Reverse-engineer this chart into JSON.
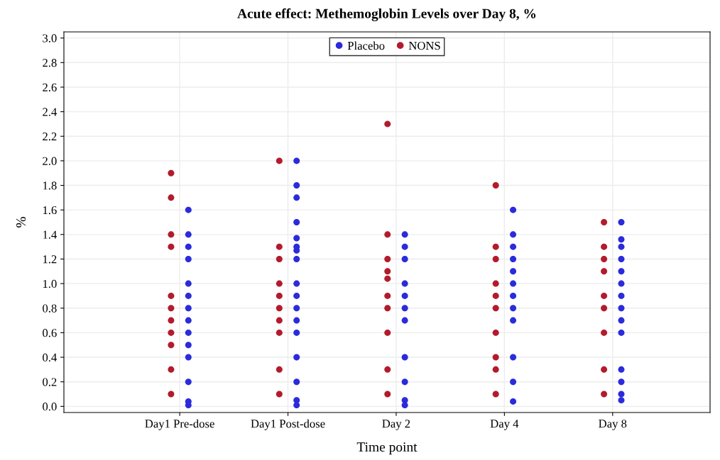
{
  "chart_data": {
    "type": "scatter",
    "title": "Acute effect: Methemoglobin Levels over Day 8, %",
    "xlabel": "Time point",
    "ylabel": "%",
    "categories": [
      "Day1 Pre-dose",
      "Day1 Post-dose",
      "Day 2",
      "Day 4",
      "Day 8"
    ],
    "series": [
      {
        "name": "Placebo",
        "color": "#2b2bdc",
        "x": [
          "Day1 Pre-dose",
          "Day1 Pre-dose",
          "Day1 Pre-dose",
          "Day1 Pre-dose",
          "Day1 Pre-dose",
          "Day1 Pre-dose",
          "Day1 Pre-dose",
          "Day1 Pre-dose",
          "Day1 Pre-dose",
          "Day1 Pre-dose",
          "Day1 Pre-dose",
          "Day1 Pre-dose",
          "Day1 Pre-dose",
          "Day1 Pre-dose",
          "Day1 Post-dose",
          "Day1 Post-dose",
          "Day1 Post-dose",
          "Day1 Post-dose",
          "Day1 Post-dose",
          "Day1 Post-dose",
          "Day1 Post-dose",
          "Day1 Post-dose",
          "Day1 Post-dose",
          "Day1 Post-dose",
          "Day1 Post-dose",
          "Day1 Post-dose",
          "Day1 Post-dose",
          "Day1 Post-dose",
          "Day1 Post-dose",
          "Day1 Post-dose",
          "Day1 Post-dose",
          "Day 2",
          "Day 2",
          "Day 2",
          "Day 2",
          "Day 2",
          "Day 2",
          "Day 2",
          "Day 2",
          "Day 2",
          "Day 2",
          "Day 2",
          "Day 4",
          "Day 4",
          "Day 4",
          "Day 4",
          "Day 4",
          "Day 4",
          "Day 4",
          "Day 4",
          "Day 4",
          "Day 4",
          "Day 4",
          "Day 4",
          "Day 8",
          "Day 8",
          "Day 8",
          "Day 8",
          "Day 8",
          "Day 8",
          "Day 8",
          "Day 8",
          "Day 8",
          "Day 8",
          "Day 8",
          "Day 8",
          "Day 8",
          "Day 8"
        ],
        "values": [
          1.6,
          1.4,
          1.3,
          1.2,
          1.0,
          0.9,
          0.8,
          0.7,
          0.6,
          0.5,
          0.4,
          0.2,
          0.04,
          0.01,
          2.0,
          1.8,
          1.7,
          1.5,
          1.37,
          1.3,
          1.27,
          1.2,
          1.0,
          0.9,
          0.8,
          0.7,
          0.6,
          0.4,
          0.2,
          0.05,
          0.01,
          1.4,
          1.3,
          1.2,
          1.0,
          0.9,
          0.8,
          0.7,
          0.4,
          0.2,
          0.05,
          0.01,
          1.6,
          1.4,
          1.3,
          1.2,
          1.1,
          1.0,
          0.9,
          0.8,
          0.7,
          0.4,
          0.2,
          0.04,
          1.5,
          1.36,
          1.3,
          1.2,
          1.1,
          1.0,
          0.9,
          0.8,
          0.7,
          0.6,
          0.3,
          0.2,
          0.1,
          0.05
        ]
      },
      {
        "name": "NONS",
        "color": "#b31b2c",
        "x": [
          "Day1 Pre-dose",
          "Day1 Pre-dose",
          "Day1 Pre-dose",
          "Day1 Pre-dose",
          "Day1 Pre-dose",
          "Day1 Pre-dose",
          "Day1 Pre-dose",
          "Day1 Pre-dose",
          "Day1 Pre-dose",
          "Day1 Pre-dose",
          "Day1 Pre-dose",
          "Day1 Post-dose",
          "Day1 Post-dose",
          "Day1 Post-dose",
          "Day1 Post-dose",
          "Day1 Post-dose",
          "Day1 Post-dose",
          "Day1 Post-dose",
          "Day1 Post-dose",
          "Day1 Post-dose",
          "Day1 Post-dose",
          "Day 2",
          "Day 2",
          "Day 2",
          "Day 2",
          "Day 2",
          "Day 2",
          "Day 2",
          "Day 2",
          "Day 2",
          "Day 2",
          "Day 4",
          "Day 4",
          "Day 4",
          "Day 4",
          "Day 4",
          "Day 4",
          "Day 4",
          "Day 4",
          "Day 4",
          "Day 4",
          "Day 8",
          "Day 8",
          "Day 8",
          "Day 8",
          "Day 8",
          "Day 8",
          "Day 8",
          "Day 8",
          "Day 8"
        ],
        "values": [
          1.9,
          1.7,
          1.4,
          1.3,
          0.9,
          0.8,
          0.7,
          0.6,
          0.5,
          0.3,
          0.1,
          2.0,
          1.3,
          1.2,
          1.0,
          0.9,
          0.8,
          0.7,
          0.6,
          0.3,
          0.1,
          2.3,
          1.4,
          1.2,
          1.1,
          1.04,
          0.9,
          0.8,
          0.6,
          0.3,
          0.1,
          1.8,
          1.3,
          1.2,
          1.0,
          0.9,
          0.8,
          0.6,
          0.4,
          0.3,
          0.1,
          1.5,
          1.3,
          1.2,
          1.1,
          0.9,
          0.8,
          0.6,
          0.3,
          0.1
        ]
      }
    ],
    "ylim": [
      -0.05,
      3.05
    ],
    "yticks": [
      {
        "value": 0,
        "label": "0.0"
      },
      {
        "value": 0.2,
        "label": "0.2"
      },
      {
        "value": 0.4,
        "label": "0.4"
      },
      {
        "value": 0.6,
        "label": "0.6"
      },
      {
        "value": 0.8,
        "label": "0.8"
      },
      {
        "value": 1.0,
        "label": "1.0"
      },
      {
        "value": 1.2,
        "label": "1.2"
      },
      {
        "value": 1.4,
        "label": "1.4"
      },
      {
        "value": 1.6,
        "label": "1.6"
      },
      {
        "value": 1.8,
        "label": "1.8"
      },
      {
        "value": 2.0,
        "label": "2.0"
      },
      {
        "value": 2.2,
        "label": "2.2"
      },
      {
        "value": 2.4,
        "label": "2.4"
      },
      {
        "value": 2.6,
        "label": "2.6"
      },
      {
        "value": 2.8,
        "label": "2.8"
      },
      {
        "value": 3.0,
        "label": "3.0"
      }
    ],
    "grid": true,
    "legend": "top",
    "marker": "circle"
  }
}
